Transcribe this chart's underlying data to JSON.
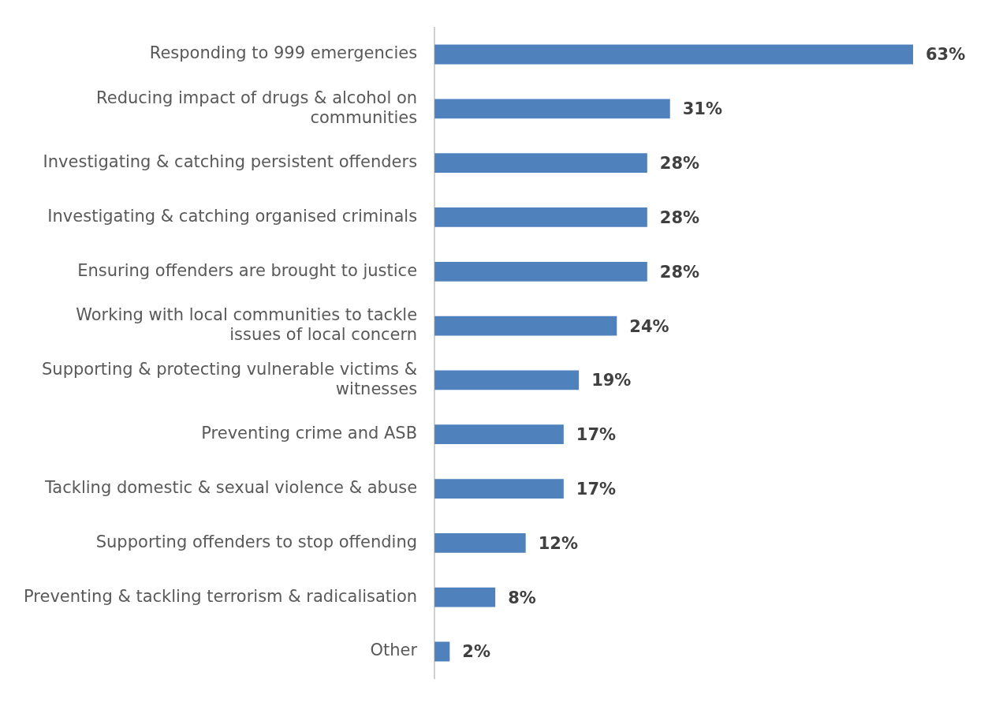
{
  "chart_data": {
    "type": "bar",
    "orientation": "horizontal",
    "categories": [
      "Responding to 999 emergencies",
      "Reducing impact of drugs & alcohol on communities",
      "Investigating & catching persistent offenders",
      "Investigating & catching organised criminals",
      "Ensuring offenders are brought to justice",
      "Working with local communities to tackle issues of local concern",
      "Supporting & protecting vulnerable victims & witnesses",
      "Preventing crime and ASB",
      "Tackling domestic & sexual violence & abuse",
      "Supporting offenders to stop offending",
      "Preventing & tackling terrorism & radicalisation",
      "Other"
    ],
    "values": [
      63,
      31,
      28,
      28,
      28,
      24,
      19,
      17,
      17,
      12,
      8,
      2
    ],
    "value_labels": [
      "63%",
      "31%",
      "28%",
      "28%",
      "28%",
      "24%",
      "19%",
      "17%",
      "17%",
      "12%",
      "8%",
      "2%"
    ],
    "color": "#4f81bd"
  }
}
